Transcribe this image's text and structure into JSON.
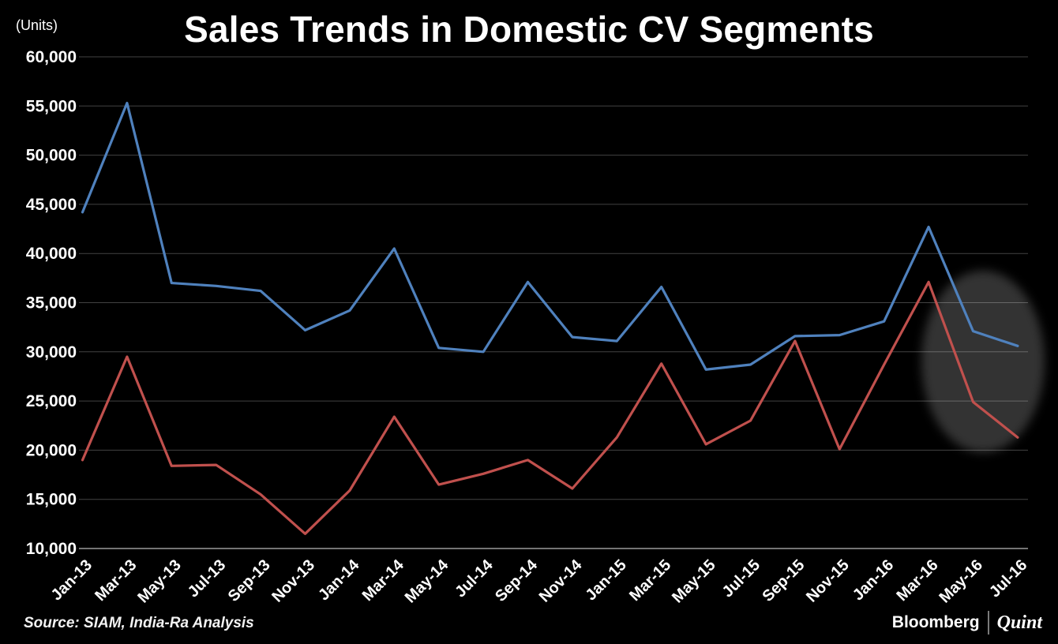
{
  "header": {
    "units_label": "(Units)",
    "title": "Sales Trends in Domestic CV Segments"
  },
  "footer": {
    "source": "Source:  SIAM, India-Ra Analysis",
    "logo_left": "Bloomberg",
    "logo_right": "Quint"
  },
  "colors": {
    "background": "#000000",
    "text": "#ffffff",
    "gridline": "#424242",
    "axis_line": "#9a9a9a",
    "blue_series": "#4f81bd",
    "red_series": "#c0504d",
    "highlight": "#ffffff"
  },
  "chart_data": {
    "type": "line",
    "title": "Sales Trends in Domestic CV Segments",
    "units": "(Units)",
    "xlabel": "",
    "ylabel": "",
    "ylim": [
      10000,
      60000
    ],
    "ytick_step": 5000,
    "ytick_labels": [
      "60,000",
      "55,000",
      "50,000",
      "45,000",
      "40,000",
      "35,000",
      "30,000",
      "25,000",
      "20,000",
      "15,000",
      "10,000"
    ],
    "grid": "horizontal",
    "legend": "none",
    "categories": [
      "Jan-13",
      "Mar-13",
      "May-13",
      "Jul-13",
      "Sep-13",
      "Nov-13",
      "Jan-14",
      "Mar-14",
      "May-14",
      "Jul-14",
      "Sep-14",
      "Nov-14",
      "Jan-15",
      "Mar-15",
      "May-15",
      "Jul-15",
      "Sep-15",
      "Nov-15",
      "Jan-16",
      "Mar-16",
      "May-16",
      "Jul-16"
    ],
    "series": [
      {
        "name": "blue",
        "color": "#4f81bd",
        "values": [
          44200,
          55300,
          37000,
          36700,
          36200,
          32200,
          34200,
          40500,
          30400,
          30000,
          37100,
          31500,
          31100,
          36600,
          28200,
          28700,
          31600,
          31700,
          33100,
          42700,
          32100,
          30600
        ]
      },
      {
        "name": "red",
        "color": "#c0504d",
        "values": [
          19000,
          29500,
          18400,
          18500,
          15500,
          11500,
          15900,
          23400,
          16500,
          17600,
          19000,
          16100,
          21300,
          28800,
          20600,
          23000,
          31100,
          20100,
          28700,
          37100,
          24900,
          21300
        ]
      }
    ],
    "annotations": [
      {
        "type": "ellipse_highlight",
        "highlights": "May-16 and Jul-16 data points",
        "fill": "#ffffff",
        "opacity": 0.2
      }
    ]
  }
}
